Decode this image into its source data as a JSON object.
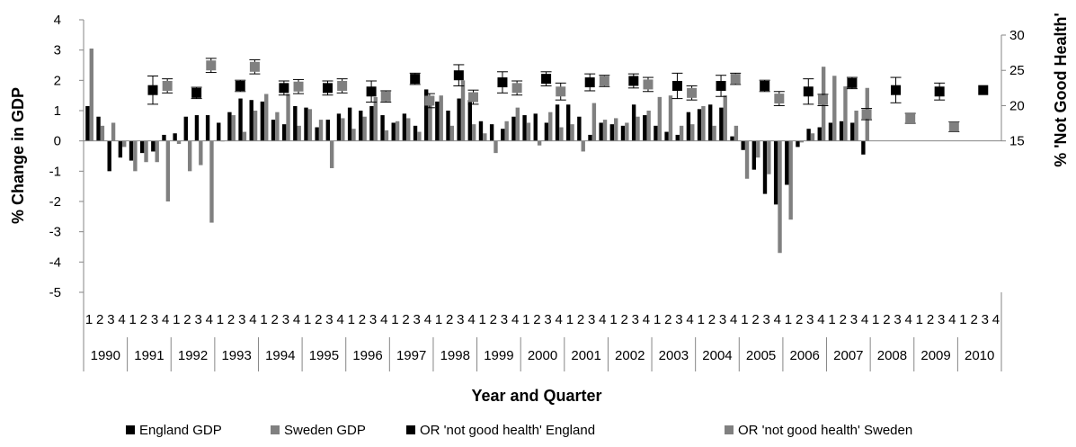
{
  "chart_data": {
    "type": "bar",
    "xlabel": "Year and Quarter",
    "ylabel": "% Change in GDP",
    "y2label": "% 'Not Good Health'",
    "ylim": [
      -5,
      4
    ],
    "yticks": [
      4,
      3,
      2,
      1,
      0,
      -1,
      -2,
      -3,
      -4,
      -5
    ],
    "y2lim": [
      15,
      30
    ],
    "y2ticks": [
      30,
      25,
      20,
      15
    ],
    "years": [
      "1990",
      "1991",
      "1992",
      "1993",
      "1994",
      "1995",
      "1996",
      "1997",
      "1998",
      "1999",
      "2000",
      "2001",
      "2002",
      "2003",
      "2004",
      "2005",
      "2006",
      "2007",
      "2008",
      "2009",
      "2010"
    ],
    "quarter_labels": [
      "1",
      "2",
      "3",
      "4"
    ],
    "series": [
      {
        "name": "England GDP",
        "color": "#000000",
        "values": [
          1.15,
          0.8,
          -1.0,
          -0.55,
          -0.65,
          -0.4,
          -0.35,
          0.2,
          0.25,
          0.8,
          0.85,
          0.85,
          0.6,
          0.95,
          1.4,
          1.35,
          1.3,
          0.7,
          0.55,
          1.15,
          1.1,
          0.45,
          0.7,
          0.9,
          1.1,
          1.0,
          1.15,
          0.85,
          0.6,
          0.9,
          0.5,
          1.7,
          1.3,
          1.0,
          1.4,
          1.35,
          0.65,
          0.55,
          0.4,
          0.8,
          0.85,
          0.9,
          0.6,
          1.2,
          1.2,
          0.8,
          0.2,
          0.6,
          0.55,
          0.5,
          1.2,
          0.85,
          0.5,
          0.3,
          0.2,
          0.95,
          1.05,
          1.2,
          1.1,
          0.15,
          -0.3,
          -0.95,
          -1.75,
          -2.1,
          -1.45,
          -0.2,
          0.4,
          0.45,
          0.6,
          0.65,
          0.6,
          -0.45
        ]
      },
      {
        "name": "Sweden GDP",
        "color": "#808080",
        "values": [
          3.05,
          0.5,
          0.6,
          -0.2,
          -1.0,
          -0.7,
          -0.7,
          -2.0,
          -0.1,
          -1.0,
          -0.8,
          -2.7,
          0.0,
          0.85,
          0.3,
          1.0,
          1.55,
          0.95,
          1.55,
          0.5,
          1.05,
          0.7,
          -0.9,
          0.75,
          0.4,
          0.8,
          1.45,
          0.35,
          0.65,
          0.75,
          0.3,
          1.4,
          1.5,
          0.5,
          2.0,
          0.55,
          0.25,
          -0.4,
          0.65,
          1.1,
          0.6,
          -0.15,
          0.95,
          0.45,
          0.55,
          -0.35,
          1.25,
          0.7,
          0.75,
          0.6,
          0.8,
          1.0,
          1.45,
          1.5,
          0.5,
          0.55,
          1.15,
          0.5,
          1.5,
          0.5,
          -1.25,
          -0.55,
          -1.1,
          -3.7,
          -2.6,
          -0.05,
          0.25,
          2.45,
          2.15,
          1.8,
          1.0,
          1.75
        ]
      },
      {
        "name": "OR 'not good health' England",
        "color": "#000000",
        "type": "scatter",
        "axis": "secondary",
        "points": [
          {
            "year": "1991",
            "quarter": 3,
            "value": 22.2,
            "error": 2.0
          },
          {
            "year": "1992",
            "quarter": 3,
            "value": 21.8,
            "error": 0.8
          },
          {
            "year": "1993",
            "quarter": 3,
            "value": 22.8,
            "error": 0.8
          },
          {
            "year": "1994",
            "quarter": 3,
            "value": 22.5,
            "error": 1.0
          },
          {
            "year": "1995",
            "quarter": 3,
            "value": 22.5,
            "error": 1.0
          },
          {
            "year": "1996",
            "quarter": 3,
            "value": 22.0,
            "error": 1.5
          },
          {
            "year": "1997",
            "quarter": 3,
            "value": 23.8,
            "error": 0.8
          },
          {
            "year": "1998",
            "quarter": 3,
            "value": 24.3,
            "error": 1.5
          },
          {
            "year": "1999",
            "quarter": 3,
            "value": 23.3,
            "error": 1.5
          },
          {
            "year": "2000",
            "quarter": 3,
            "value": 23.8,
            "error": 1.0
          },
          {
            "year": "2001",
            "quarter": 3,
            "value": 23.3,
            "error": 1.2
          },
          {
            "year": "2002",
            "quarter": 3,
            "value": 23.5,
            "error": 1.0
          },
          {
            "year": "2003",
            "quarter": 3,
            "value": 22.8,
            "error": 1.8
          },
          {
            "year": "2004",
            "quarter": 3,
            "value": 22.8,
            "error": 1.5
          },
          {
            "year": "2005",
            "quarter": 3,
            "value": 22.8,
            "error": 0.8
          },
          {
            "year": "2006",
            "quarter": 3,
            "value": 22.0,
            "error": 1.8
          },
          {
            "year": "2007",
            "quarter": 3,
            "value": 23.2,
            "error": 0.8
          },
          {
            "year": "2008",
            "quarter": 3,
            "value": 22.2,
            "error": 1.8
          },
          {
            "year": "2009",
            "quarter": 3,
            "value": 22.0,
            "error": 1.2
          },
          {
            "year": "2010",
            "quarter": 3,
            "value": 22.2,
            "error": 0.0
          }
        ]
      },
      {
        "name": "OR 'not good health' Sweden",
        "color": "#808080",
        "type": "scatter",
        "axis": "secondary",
        "points": [
          {
            "year": "1991",
            "quarter": 4,
            "value": 22.8,
            "error": 1.0
          },
          {
            "year": "1992",
            "quarter": 4,
            "value": 25.7,
            "error": 1.0
          },
          {
            "year": "1993",
            "quarter": 4,
            "value": 25.5,
            "error": 1.0
          },
          {
            "year": "1994",
            "quarter": 4,
            "value": 22.7,
            "error": 1.0
          },
          {
            "year": "1995",
            "quarter": 4,
            "value": 22.8,
            "error": 1.0
          },
          {
            "year": "1996",
            "quarter": 4,
            "value": 21.3,
            "error": 0.8
          },
          {
            "year": "1997",
            "quarter": 4,
            "value": 20.7,
            "error": 1.0
          },
          {
            "year": "1998",
            "quarter": 4,
            "value": 21.2,
            "error": 1.0
          },
          {
            "year": "1999",
            "quarter": 4,
            "value": 22.5,
            "error": 1.0
          },
          {
            "year": "2000",
            "quarter": 4,
            "value": 22.0,
            "error": 1.2
          },
          {
            "year": "2001",
            "quarter": 4,
            "value": 23.5,
            "error": 0.8
          },
          {
            "year": "2002",
            "quarter": 4,
            "value": 23.0,
            "error": 1.0
          },
          {
            "year": "2003",
            "quarter": 4,
            "value": 21.8,
            "error": 1.0
          },
          {
            "year": "2004",
            "quarter": 4,
            "value": 23.8,
            "error": 0.8
          },
          {
            "year": "2005",
            "quarter": 4,
            "value": 21.0,
            "error": 1.0
          },
          {
            "year": "2006",
            "quarter": 4,
            "value": 20.8,
            "error": 0.8
          },
          {
            "year": "2007",
            "quarter": 4,
            "value": 18.8,
            "error": 0.8
          },
          {
            "year": "2008",
            "quarter": 4,
            "value": 18.2,
            "error": 0.7
          },
          {
            "year": "2009",
            "quarter": 4,
            "value": 17.0,
            "error": 0.7
          }
        ]
      }
    ],
    "legend_position": "bottom",
    "grid": false
  }
}
